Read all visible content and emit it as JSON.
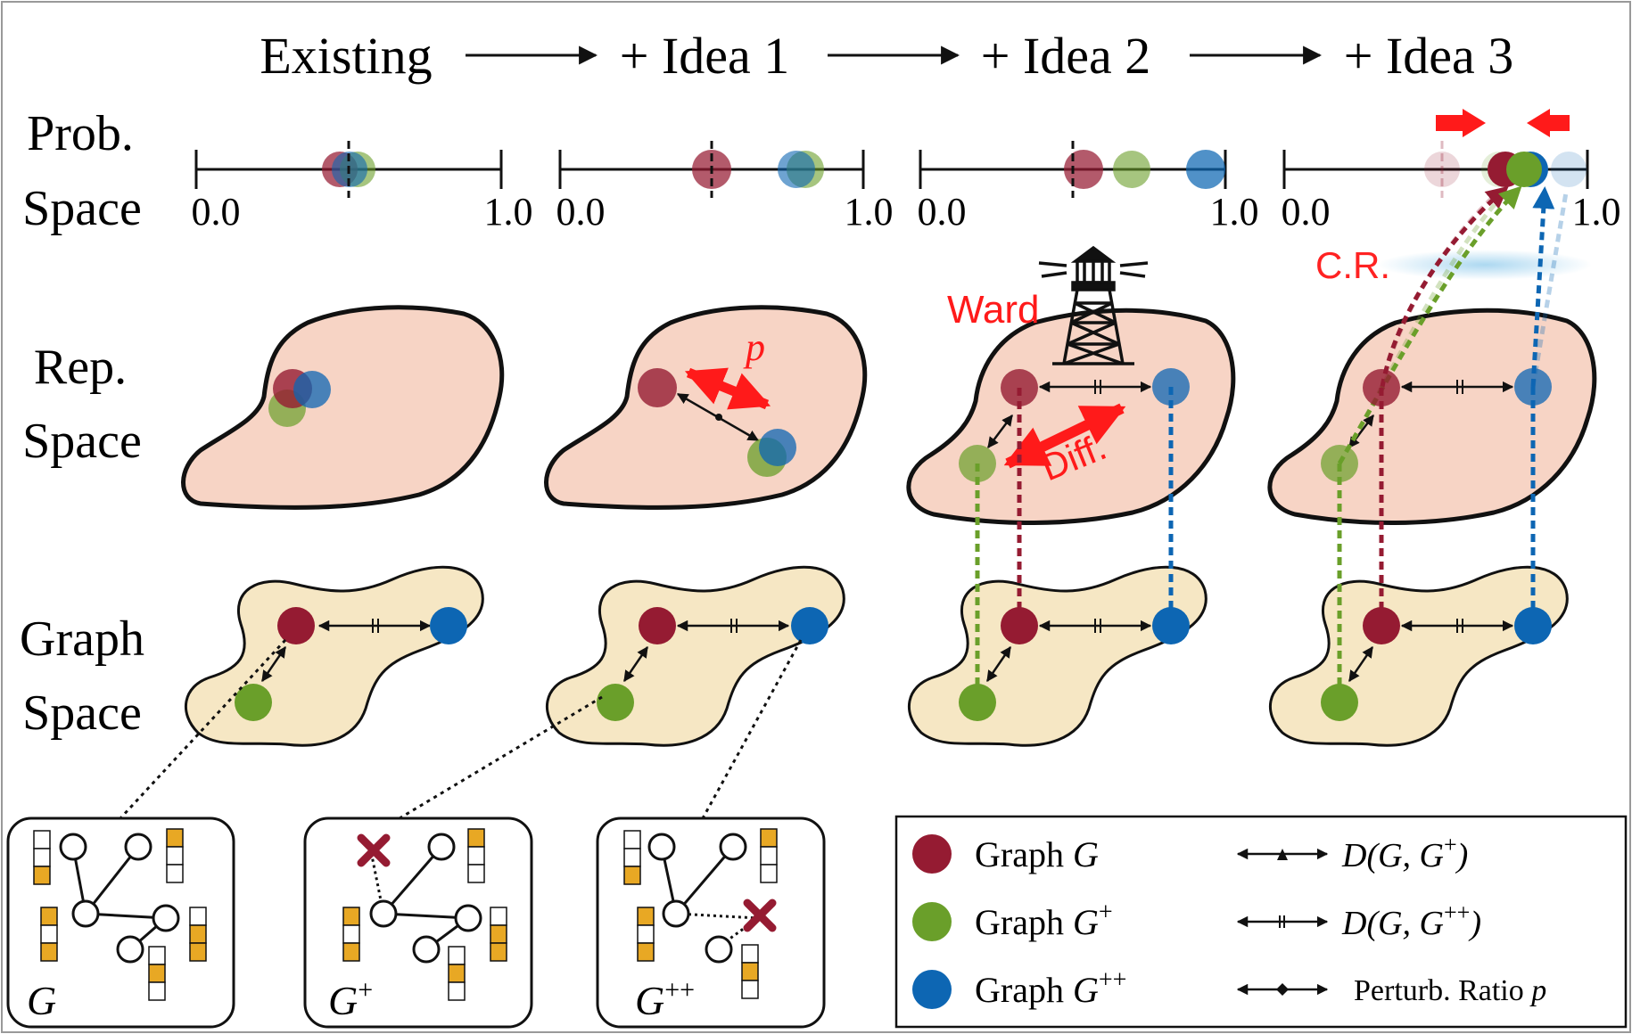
{
  "header": {
    "stages": [
      "Existing",
      "+ Idea 1",
      "+ Idea 2",
      "+ Idea 3"
    ]
  },
  "row_labels": {
    "prob": [
      "Prob.",
      "Space"
    ],
    "rep": [
      "Rep.",
      "Space"
    ],
    "graph": [
      "Graph",
      "Space"
    ]
  },
  "axis": {
    "min_label": "0.0",
    "max_label": "1.0"
  },
  "annotations": {
    "p": "p",
    "ward": "Ward",
    "diff": "Diff.",
    "cr": "C.R."
  },
  "graph_cards": [
    {
      "base": "G",
      "sup": ""
    },
    {
      "base": "G",
      "sup": "+"
    },
    {
      "base": "G",
      "sup": "++"
    }
  ],
  "legend": {
    "items": [
      {
        "base": "Graph ",
        "sym": "G",
        "sup": ""
      },
      {
        "base": "Graph ",
        "sym": "G",
        "sup": "+"
      },
      {
        "base": "Graph ",
        "sym": "G",
        "sup": "++"
      }
    ],
    "relations": [
      {
        "pre": "D(G, G",
        "sup": "+",
        "post": ")"
      },
      {
        "pre": "D(G, G",
        "sup": "++",
        "post": ")"
      },
      {
        "pre": "Perturb. Ratio ",
        "sup": "",
        "post": "p"
      }
    ]
  },
  "colors": {
    "graph": "#951b32",
    "graph_plus": "#6a9f2a",
    "graph_plusplus": "#0d66b3",
    "rep_blob": "#f7d4c5",
    "graph_blob": "#f6e7c4",
    "accent": "#ff1a1a",
    "bit_fill": "#e8a824",
    "cr_glow": "#a8d6f0"
  }
}
